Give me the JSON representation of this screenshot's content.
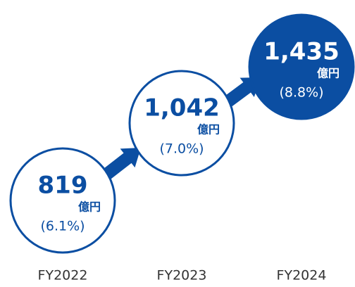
{
  "chart_data": {
    "type": "step-circles",
    "categories": [
      "FY2022",
      "FY2023",
      "FY2024"
    ],
    "values": [
      819,
      1042,
      1435
    ],
    "value_labels": [
      "819",
      "1,042",
      "1,435"
    ],
    "unit": "億円",
    "ratios": [
      6.1,
      7.0,
      8.8
    ],
    "ratio_labels": [
      "(6.1%)",
      "(7.0%)",
      "(8.8%)"
    ],
    "color": "#0b4ea2",
    "fills": [
      "#ffffff",
      "#ffffff",
      "#0b4ea2"
    ]
  }
}
